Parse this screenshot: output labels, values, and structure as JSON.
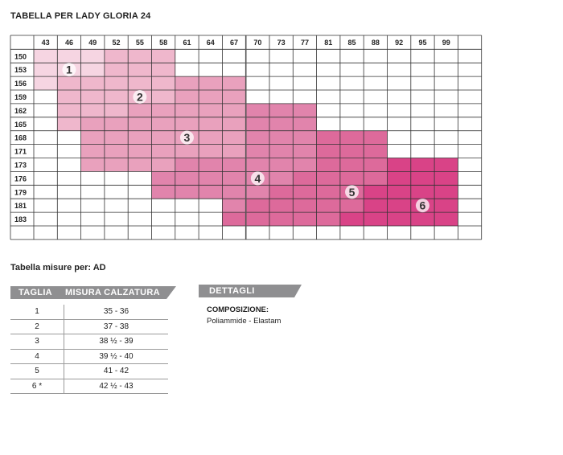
{
  "title": "TABELLA PER LADY GLORIA 24",
  "chart_data": {
    "type": "heatmap",
    "title": "TABELLA PER LADY GLORIA 24",
    "columns": [
      "43",
      "46",
      "49",
      "52",
      "55",
      "58",
      "61",
      "64",
      "67",
      "70",
      "73",
      "77",
      "81",
      "85",
      "88",
      "92",
      "95",
      "99",
      ""
    ],
    "rows": [
      "150",
      "153",
      "156",
      "159",
      "162",
      "165",
      "168",
      "171",
      "173",
      "176",
      "179",
      "181",
      "183",
      ""
    ],
    "size_colors": [
      "#f6d5e2",
      "#efb7cc",
      "#e9a1bd",
      "#e184ac",
      "#dd6a9b",
      "#d94387"
    ],
    "size_labels": [
      "1",
      "2",
      "3",
      "4",
      "5",
      "6"
    ],
    "size_grid": [
      [
        1,
        1,
        1,
        2,
        2,
        2,
        0,
        0,
        0,
        0,
        0,
        0,
        0,
        0,
        0,
        0,
        0,
        0,
        0
      ],
      [
        1,
        1,
        1,
        2,
        2,
        2,
        0,
        0,
        0,
        0,
        0,
        0,
        0,
        0,
        0,
        0,
        0,
        0,
        0
      ],
      [
        1,
        2,
        2,
        2,
        2,
        2,
        3,
        3,
        3,
        0,
        0,
        0,
        0,
        0,
        0,
        0,
        0,
        0,
        0
      ],
      [
        0,
        2,
        2,
        2,
        2,
        2,
        3,
        3,
        3,
        0,
        0,
        0,
        0,
        0,
        0,
        0,
        0,
        0,
        0
      ],
      [
        0,
        2,
        2,
        2,
        3,
        3,
        3,
        3,
        3,
        4,
        4,
        4,
        0,
        0,
        0,
        0,
        0,
        0,
        0
      ],
      [
        0,
        2,
        3,
        3,
        3,
        3,
        3,
        3,
        3,
        4,
        4,
        4,
        0,
        0,
        0,
        0,
        0,
        0,
        0
      ],
      [
        0,
        0,
        3,
        3,
        3,
        3,
        3,
        3,
        3,
        4,
        4,
        4,
        5,
        5,
        5,
        0,
        0,
        0,
        0
      ],
      [
        0,
        0,
        3,
        3,
        3,
        3,
        3,
        3,
        3,
        4,
        4,
        4,
        5,
        5,
        5,
        0,
        0,
        0,
        0
      ],
      [
        0,
        0,
        3,
        3,
        3,
        3,
        4,
        4,
        4,
        4,
        4,
        4,
        5,
        5,
        5,
        6,
        6,
        6,
        0
      ],
      [
        0,
        0,
        0,
        0,
        0,
        4,
        4,
        4,
        4,
        4,
        4,
        5,
        5,
        5,
        5,
        6,
        6,
        6,
        0
      ],
      [
        0,
        0,
        0,
        0,
        0,
        4,
        4,
        4,
        4,
        4,
        5,
        5,
        5,
        5,
        6,
        6,
        6,
        6,
        0
      ],
      [
        0,
        0,
        0,
        0,
        0,
        0,
        0,
        0,
        4,
        5,
        5,
        5,
        5,
        5,
        6,
        6,
        6,
        6,
        0
      ],
      [
        0,
        0,
        0,
        0,
        0,
        0,
        0,
        0,
        5,
        5,
        5,
        5,
        5,
        6,
        6,
        6,
        6,
        6,
        0
      ],
      [
        0,
        0,
        0,
        0,
        0,
        0,
        0,
        0,
        0,
        0,
        0,
        0,
        0,
        0,
        0,
        0,
        0,
        0,
        0
      ]
    ],
    "size_label_cells": [
      {
        "label": "1",
        "row": 1,
        "col": 1
      },
      {
        "label": "2",
        "row": 3,
        "col": 4
      },
      {
        "label": "3",
        "row": 6,
        "col": 6
      },
      {
        "label": "4",
        "row": 9,
        "col": 9
      },
      {
        "label": "5",
        "row": 10,
        "col": 13
      },
      {
        "label": "6",
        "row": 11,
        "col": 16
      }
    ],
    "grid": true
  },
  "section_title": "Tabella misure per: AD",
  "size_table": {
    "headers": [
      "TAGLIA",
      "MISURA CALZATURA"
    ],
    "rows": [
      [
        "1",
        "35 - 36"
      ],
      [
        "2",
        "37 - 38"
      ],
      [
        "3",
        "38 ½ - 39"
      ],
      [
        "4",
        "39 ½ - 40"
      ],
      [
        "5",
        "41 - 42"
      ],
      [
        "6 *",
        "42 ½ - 43"
      ]
    ]
  },
  "details": {
    "header": "DETTAGLI",
    "composition_label": "COMPOSIZIONE:",
    "composition_value": "Poliammide - Elastam"
  }
}
